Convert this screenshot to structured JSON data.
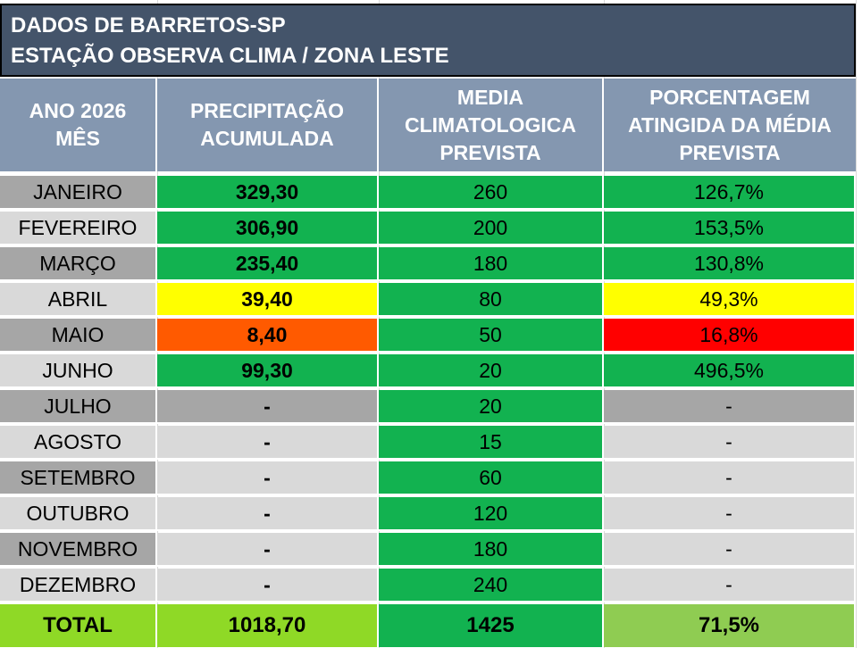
{
  "title": {
    "line1": "DADOS DE BARRETOS-SP",
    "line2": "ESTAÇÃO OBSERVA CLIMA / ZONA LESTE"
  },
  "headers": {
    "col0": [
      "ANO 2026",
      "MÊS"
    ],
    "col1": [
      "PRECIPITAÇÃO",
      "ACUMULADA"
    ],
    "col2": [
      "MEDIA",
      "CLIMATOLOGICA",
      "PREVISTA"
    ],
    "col3": [
      "PORCENTAGEM",
      "ATINGIDA DA MÉDIA",
      "PREVISTA"
    ]
  },
  "colors": {
    "title_bg": "#44546a",
    "header_bg": "#8497b0",
    "green": "#12b250",
    "yellow": "#ffff00",
    "orange": "#ff5a00",
    "red": "#ff0000",
    "gray_dark": "#a6a6a6",
    "gray_light": "#d9d9d9",
    "total_light_green": "#8fd926",
    "total_green": "#12b250",
    "total_pct_green": "#8fcc52"
  },
  "rows": [
    {
      "month": "JANEIRO",
      "precip": "329,30",
      "media": "260",
      "pct": "126,7%"
    },
    {
      "month": "FEVEREIRO",
      "precip": "306,90",
      "media": "200",
      "pct": "153,5%"
    },
    {
      "month": "MARÇO",
      "precip": "235,40",
      "media": "180",
      "pct": "130,8%"
    },
    {
      "month": "ABRIL",
      "precip": "39,40",
      "media": "80",
      "pct": "49,3%"
    },
    {
      "month": "MAIO",
      "precip": "8,40",
      "media": "50",
      "pct": "16,8%"
    },
    {
      "month": "JUNHO",
      "precip": "99,30",
      "media": "20",
      "pct": "496,5%"
    },
    {
      "month": "JULHO",
      "precip": "-",
      "media": "20",
      "pct": "-"
    },
    {
      "month": "AGOSTO",
      "precip": "-",
      "media": "15",
      "pct": "-"
    },
    {
      "month": "SETEMBRO",
      "precip": "-",
      "media": "60",
      "pct": "-"
    },
    {
      "month": "OUTUBRO",
      "precip": "-",
      "media": "120",
      "pct": "-"
    },
    {
      "month": "NOVEMBRO",
      "precip": "-",
      "media": "180",
      "pct": "-"
    },
    {
      "month": "DEZEMBRO",
      "precip": "-",
      "media": "240",
      "pct": "-"
    }
  ],
  "total": {
    "label": "TOTAL",
    "precip": "1018,70",
    "media": "1425",
    "pct": "71,5%"
  }
}
